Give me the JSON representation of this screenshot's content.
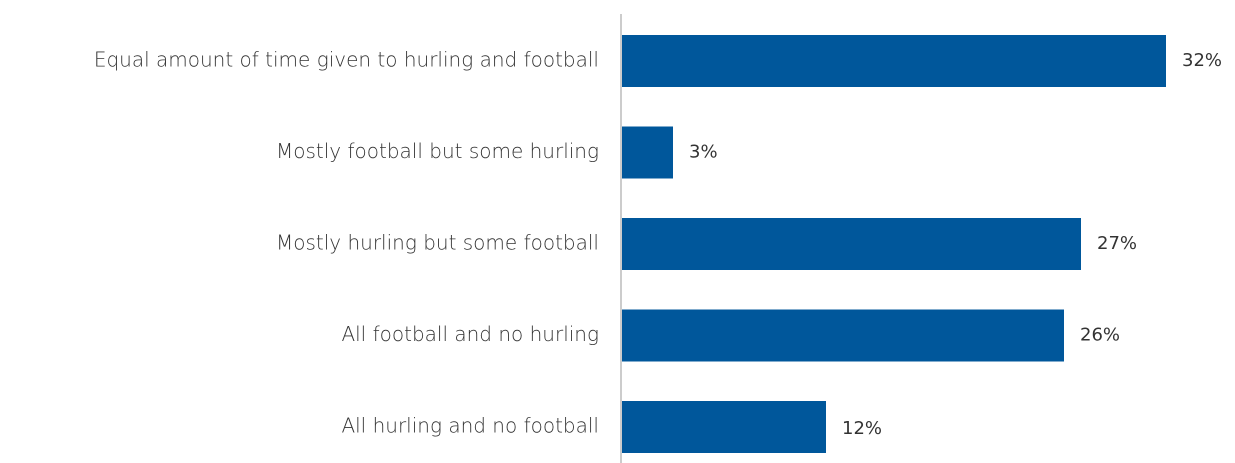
{
  "chart_data": {
    "type": "bar",
    "orientation": "horizontal",
    "categories": [
      "Equal amount of time given to hurling and football",
      "Mostly football but some hurling",
      "Mostly hurling but some football",
      "All football and no hurling",
      "All hurling and no football"
    ],
    "values": [
      32,
      3,
      27,
      26,
      12
    ],
    "value_labels": [
      "32%",
      "3%",
      "27%",
      "26%",
      "12%"
    ],
    "xlim": [
      0,
      32
    ],
    "grid": false,
    "legend": "none",
    "bar_color": "#00579B",
    "axis_color": "#CCCCCC"
  }
}
